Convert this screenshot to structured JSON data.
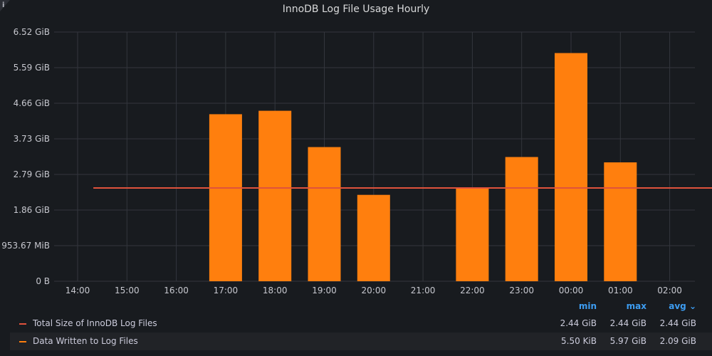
{
  "panel": {
    "title": "InnoDB Log File Usage Hourly"
  },
  "icons": {
    "info": "info-icon"
  },
  "chart_data": {
    "type": "bar",
    "title": "InnoDB Log File Usage Hourly",
    "xlabel": "",
    "ylabel": "",
    "x_ticks": [
      "14:00",
      "15:00",
      "16:00",
      "17:00",
      "18:00",
      "19:00",
      "20:00",
      "21:00",
      "22:00",
      "23:00",
      "00:00",
      "01:00",
      "02:00"
    ],
    "y_ticks": [
      "0 B",
      "953.67 MiB",
      "1.86 GiB",
      "2.79 GiB",
      "3.73 GiB",
      "4.66 GiB",
      "5.59 GiB",
      "6.52 GiB"
    ],
    "ylim_gib": [
      0,
      6.52
    ],
    "grid": true,
    "legend_position": "bottom",
    "series": [
      {
        "name": "Total Size of InnoDB Log Files",
        "type": "line",
        "color": "#e0523c",
        "value_gib": 2.44,
        "x_start": "13:40",
        "x_end": "02:30",
        "gap_at": "14:20"
      },
      {
        "name": "Data Written to Log Files",
        "type": "bar",
        "color": "#ff7f0e",
        "bars": [
          {
            "x": "17:00",
            "value_gib": 4.37
          },
          {
            "x": "18:00",
            "value_gib": 4.46
          },
          {
            "x": "19:00",
            "value_gib": 3.51
          },
          {
            "x": "20:00",
            "value_gib": 2.26
          },
          {
            "x": "22:00",
            "value_gib": 2.44
          },
          {
            "x": "23:00",
            "value_gib": 3.25
          },
          {
            "x": "00:00",
            "value_gib": 5.97
          },
          {
            "x": "01:00",
            "value_gib": 3.11
          }
        ]
      }
    ]
  },
  "legend": {
    "headers": {
      "min": "min",
      "max": "max",
      "avg": "avg ⌄"
    },
    "rows": [
      {
        "name": "Total Size of InnoDB Log Files",
        "color": "#e0523c",
        "min": "2.44 GiB",
        "max": "2.44 GiB",
        "avg": "2.44 GiB"
      },
      {
        "name": "Data Written to Log Files",
        "color": "#ff7f0e",
        "min": "5.50 KiB",
        "max": "5.97 GiB",
        "avg": "2.09 GiB"
      }
    ]
  }
}
